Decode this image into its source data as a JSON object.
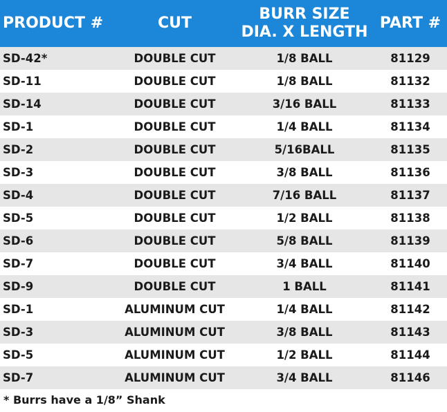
{
  "table": {
    "headers": [
      "PRODUCT #",
      "CUT",
      [
        "BURR SIZE",
        "DIA. X LENGTH"
      ],
      "PART #"
    ],
    "rows": [
      [
        "SD-42*",
        "DOUBLE CUT",
        "1/8 BALL",
        "81129"
      ],
      [
        "SD-11",
        "DOUBLE CUT",
        "1/8 BALL",
        "81132"
      ],
      [
        "SD-14",
        "DOUBLE CUT",
        "3/16 BALL",
        "81133"
      ],
      [
        "SD-1",
        "DOUBLE CUT",
        "1/4 BALL",
        "81134"
      ],
      [
        "SD-2",
        "DOUBLE CUT",
        "5/16BALL",
        "81135"
      ],
      [
        "SD-3",
        "DOUBLE CUT",
        "3/8 BALL",
        "81136"
      ],
      [
        "SD-4",
        "DOUBLE CUT",
        "7/16 BALL",
        "81137"
      ],
      [
        "SD-5",
        "DOUBLE CUT",
        "1/2 BALL",
        "81138"
      ],
      [
        "SD-6",
        "DOUBLE CUT",
        "5/8 BALL",
        "81139"
      ],
      [
        "SD-7",
        "DOUBLE CUT",
        "3/4 BALL",
        "81140"
      ],
      [
        "SD-9",
        "DOUBLE CUT",
        "1 BALL",
        "81141"
      ],
      [
        "SD-1",
        "ALUMINUM CUT",
        "1/4 BALL",
        "81142"
      ],
      [
        "SD-3",
        "ALUMINUM CUT",
        "3/8 BALL",
        "81143"
      ],
      [
        "SD-5",
        "ALUMINUM CUT",
        "1/2 BALL",
        "81144"
      ],
      [
        "SD-7",
        "ALUMINUM CUT",
        "3/4 BALL",
        "81146"
      ]
    ],
    "footnote": "* Burrs have a 1/8” Shank"
  }
}
